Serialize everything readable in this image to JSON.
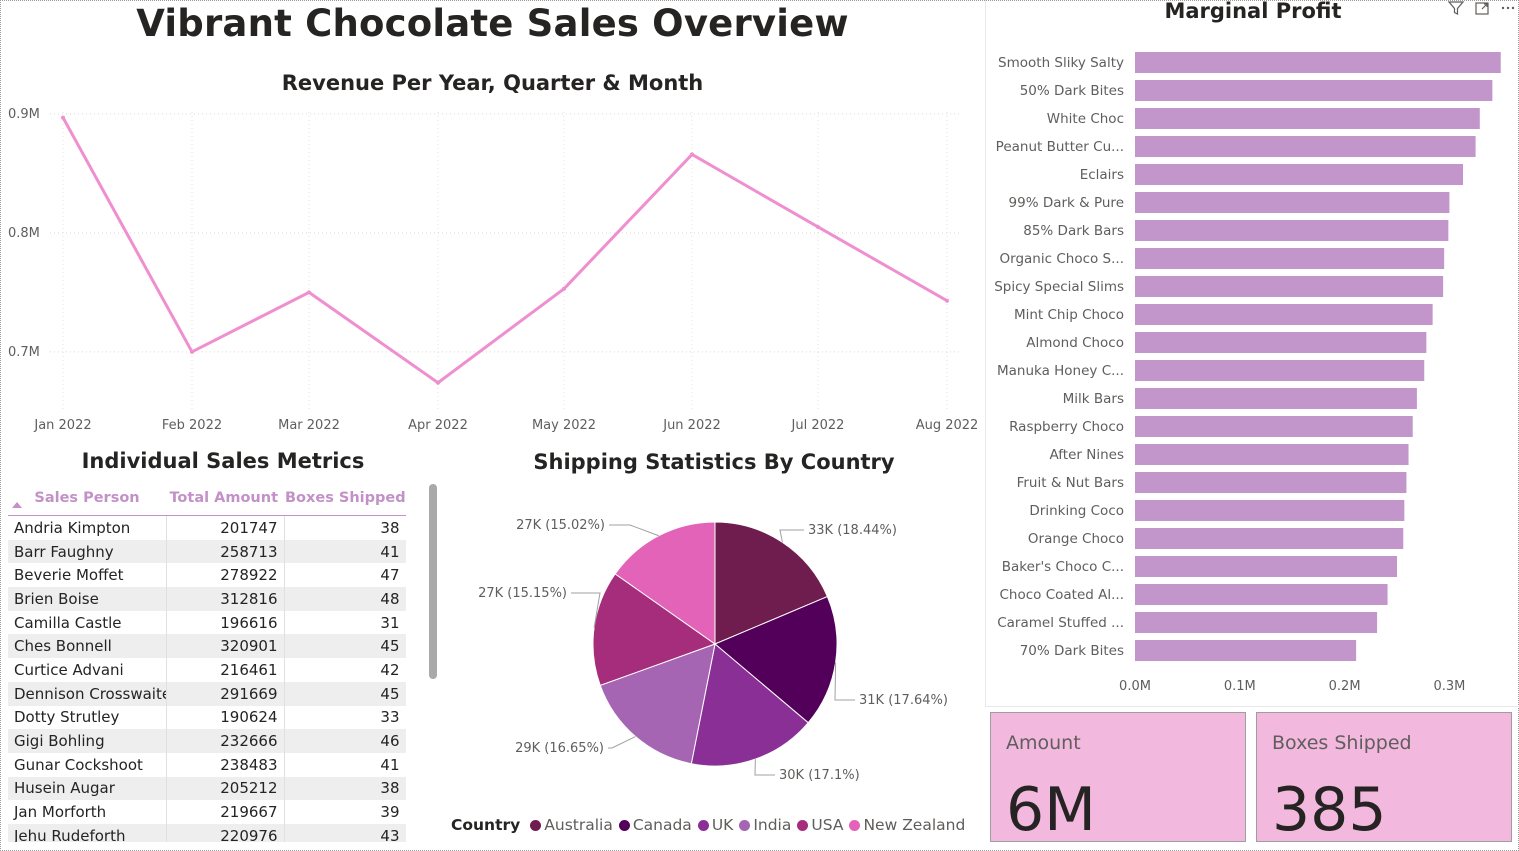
{
  "title": "Vibrant Chocolate Sales Overview",
  "colors": {
    "line": "#ef8fcf",
    "bar": "#c396cb",
    "header_text": "#c391c8",
    "card_bg": "#f2b8de"
  },
  "line_chart": {
    "title": "Revenue Per Year, Quarter & Month",
    "y_ticks": [
      "0.9M",
      "0.8M",
      "0.7M"
    ],
    "x_ticks": [
      "Jan 2022",
      "Feb 2022",
      "Mar 2022",
      "Apr 2022",
      "May 2022",
      "Jun 2022",
      "Jul 2022",
      "Aug 2022"
    ]
  },
  "table": {
    "title": "Individual Sales Metrics",
    "columns": [
      "Sales Person",
      "Total Amount",
      "Boxes Shipped"
    ],
    "rows": [
      [
        "Andria Kimpton",
        "201747",
        "38"
      ],
      [
        "Barr Faughny",
        "258713",
        "41"
      ],
      [
        "Beverie Moffet",
        "278922",
        "47"
      ],
      [
        "Brien Boise",
        "312816",
        "48"
      ],
      [
        "Camilla Castle",
        "196616",
        "31"
      ],
      [
        "Ches Bonnell",
        "320901",
        "45"
      ],
      [
        "Curtice Advani",
        "216461",
        "42"
      ],
      [
        "Dennison Crosswaite",
        "291669",
        "45"
      ],
      [
        "Dotty Strutley",
        "190624",
        "33"
      ],
      [
        "Gigi Bohling",
        "232666",
        "46"
      ],
      [
        "Gunar Cockshoot",
        "238483",
        "41"
      ],
      [
        "Husein Augar",
        "205212",
        "38"
      ],
      [
        "Jan Morforth",
        "219667",
        "39"
      ],
      [
        "Jehu Rudeforth",
        "220976",
        "43"
      ]
    ]
  },
  "pie": {
    "title": "Shipping Statistics By Country",
    "legend_title": "Country"
  },
  "bar_chart": {
    "title": "Marginal Profit",
    "x_ticks": [
      "0.0M",
      "0.1M",
      "0.2M",
      "0.3M"
    ]
  },
  "cards": {
    "amount": {
      "label": "Amount",
      "value": "6M"
    },
    "boxes": {
      "label": "Boxes Shipped",
      "value": "385"
    }
  },
  "chart_data": [
    {
      "type": "line",
      "title": "Revenue Per Year, Quarter & Month",
      "x": [
        "Jan 2022",
        "Feb 2022",
        "Mar 2022",
        "Apr 2022",
        "May 2022",
        "Jun 2022",
        "Jul 2022",
        "Aug 2022"
      ],
      "values": [
        0.897,
        0.7,
        0.75,
        0.674,
        0.753,
        0.866,
        0.805,
        0.743
      ],
      "ylabel": "",
      "xlabel": "",
      "unit": "M",
      "ylim": [
        0.64,
        0.905
      ],
      "grid": true
    },
    {
      "type": "pie",
      "title": "Shipping Statistics By Country",
      "labels": [
        "Australia",
        "Canada",
        "UK",
        "India",
        "USA",
        "New Zealand"
      ],
      "values": [
        33,
        31,
        30,
        29,
        27,
        27
      ],
      "data_labels": [
        "33K (18.44%)",
        "31K (17.64%)",
        "30K (17.1%)",
        "29K (16.65%)",
        "27K (15.15%)",
        "27K (15.02%)"
      ],
      "colors": [
        "#6f1d4f",
        "#52005a",
        "#8a2f96",
        "#a565b3",
        "#a52d7c",
        "#e263b7"
      ]
    },
    {
      "type": "bar",
      "orientation": "horizontal",
      "title": "Marginal Profit",
      "categories": [
        "Smooth Sliky Salty",
        "50% Dark Bites",
        "White Choc",
        "Peanut Butter Cu...",
        "Eclairs",
        "99% Dark & Pure",
        "85% Dark Bars",
        "Organic Choco S...",
        "Spicy Special Slims",
        "Mint Chip Choco",
        "Almond Choco",
        "Manuka Honey C...",
        "Milk Bars",
        "Raspberry Choco",
        "After Nines",
        "Fruit & Nut Bars",
        "Drinking Coco",
        "Orange Choco",
        "Baker's Choco C...",
        "Choco Coated Al...",
        "Caramel Stuffed ...",
        "70% Dark Bites"
      ],
      "values": [
        0.349,
        0.341,
        0.329,
        0.325,
        0.313,
        0.3,
        0.299,
        0.295,
        0.294,
        0.284,
        0.278,
        0.276,
        0.269,
        0.265,
        0.261,
        0.259,
        0.257,
        0.256,
        0.25,
        0.241,
        0.231,
        0.211
      ],
      "xlim": [
        0,
        0.35
      ],
      "unit": "M"
    }
  ]
}
